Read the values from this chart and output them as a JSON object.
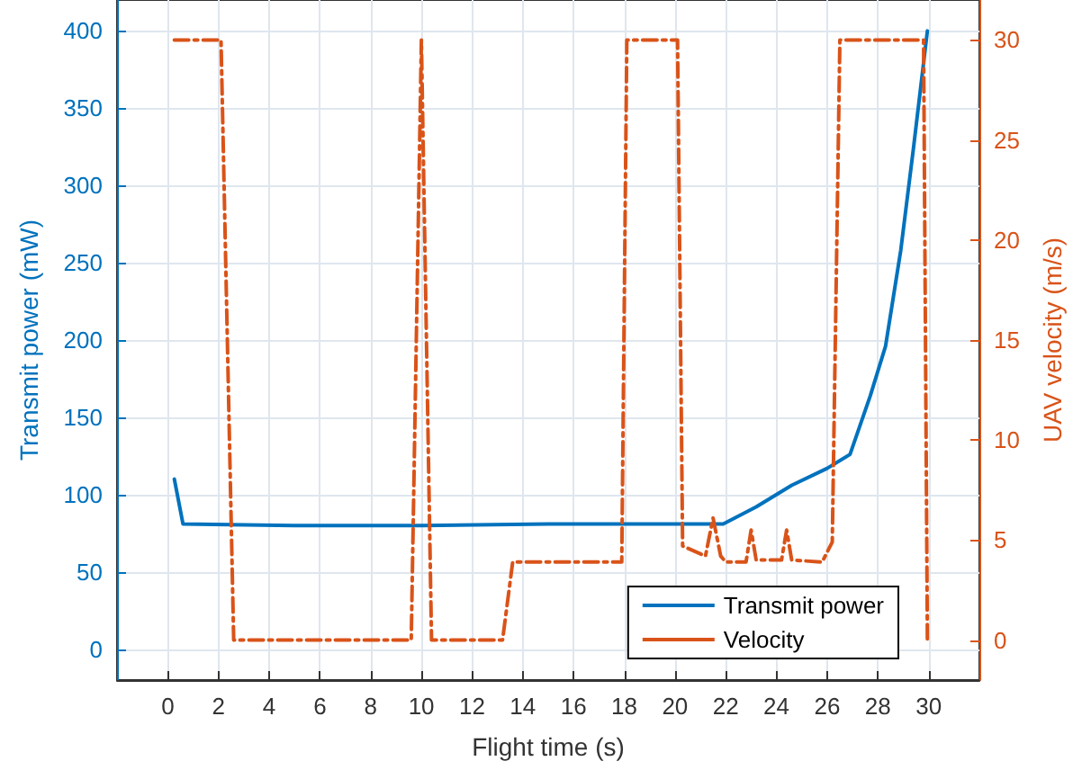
{
  "chart_data": {
    "type": "line",
    "xlabel": "Flight time (s)",
    "ylabel": "Transmit power (mW)",
    "y2label": "UAV velocity (m/s)",
    "xlim": [
      -2,
      32
    ],
    "xticks": [
      0,
      2,
      4,
      6,
      8,
      10,
      12,
      14,
      16,
      18,
      20,
      22,
      24,
      26,
      28,
      30
    ],
    "ylim": [
      -20,
      420
    ],
    "yticks": [
      0,
      50,
      100,
      150,
      200,
      250,
      300,
      350,
      400
    ],
    "y2lim": [
      -2,
      32
    ],
    "y2ticks": [
      0,
      5,
      10,
      15,
      20,
      25,
      30
    ],
    "grid": true,
    "legend": "bottom right",
    "marker": "none",
    "series": [
      {
        "name": "Transmit power",
        "color": "#0072bd",
        "line_style": "solid",
        "x": [
          0.26,
          0.6,
          5,
          10,
          15,
          20,
          21.9,
          23.2,
          24.6,
          26,
          26.9,
          27.7,
          28.3,
          28.9,
          29.4,
          29.95
        ],
        "values": [
          110,
          81,
          80,
          80,
          81,
          81,
          81,
          92,
          106,
          117,
          126,
          164,
          196,
          258,
          324,
          400
        ]
      },
      {
        "name": "Velocity",
        "color": "#d95319",
        "line_style": "dashdot",
        "axis": "y2",
        "x": [
          0.26,
          2.1,
          2.6,
          9.6,
          10.0,
          10.4,
          13.2,
          13.6,
          17.9,
          18.1,
          20.1,
          20.3,
          21.2,
          21.5,
          21.8,
          22.0,
          22.8,
          23.0,
          23.2,
          23.9,
          24.2,
          24.4,
          24.6,
          25.8,
          26.2,
          26.5,
          29.8,
          29.95
        ],
        "values": [
          30,
          30,
          0,
          0,
          30,
          0,
          0,
          3.9,
          3.9,
          30,
          30,
          4.7,
          4.2,
          6.1,
          4.2,
          3.9,
          3.9,
          5.5,
          4.0,
          4.0,
          4.0,
          5.5,
          4.0,
          3.9,
          4.9,
          30,
          30,
          0
        ]
      }
    ]
  }
}
